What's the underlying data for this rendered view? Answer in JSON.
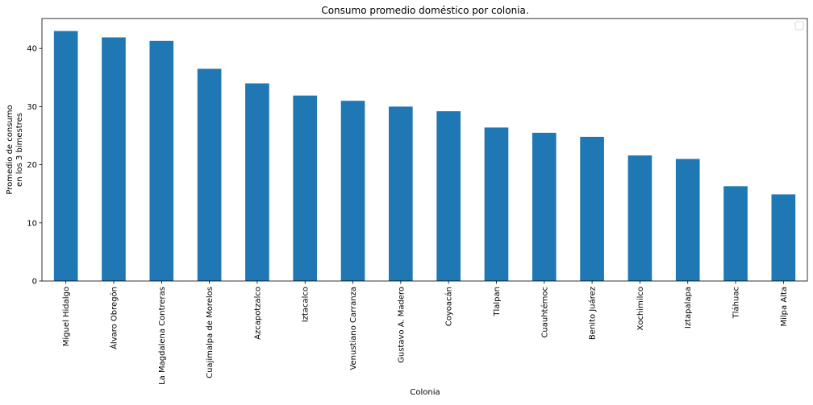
{
  "chart_data": {
    "type": "bar",
    "title": "Consumo promedio doméstico por colonia.",
    "xlabel": "Colonia",
    "ylabel_lines": [
      "Promedio de consumo",
      "en los 3 bimestres"
    ],
    "categories": [
      "Miguel Hidalgo",
      "Álvaro Obregón",
      "La Magdalena Contreras",
      "Cuajimalpa de Morelos",
      "Azcapotzalco",
      "Iztacalco",
      "Venustiano Carranza",
      "Gustavo A. Madero",
      "Coyoacán",
      "Tlalpan",
      "Cuauhtémoc",
      "Benito Juárez",
      "Xochimilco",
      "Iztapalapa",
      "Tláhuac",
      "Milpa Alta"
    ],
    "values": [
      43.0,
      41.9,
      41.3,
      36.5,
      34.0,
      31.9,
      31.0,
      30.0,
      29.2,
      26.4,
      25.5,
      24.8,
      21.6,
      21.0,
      16.3,
      14.9
    ],
    "yticks": [
      0,
      10,
      20,
      30,
      40
    ],
    "ylim": [
      0,
      45.15
    ],
    "bar_color": "#1f77b4",
    "legend": "top-right (empty)",
    "grid": false
  }
}
